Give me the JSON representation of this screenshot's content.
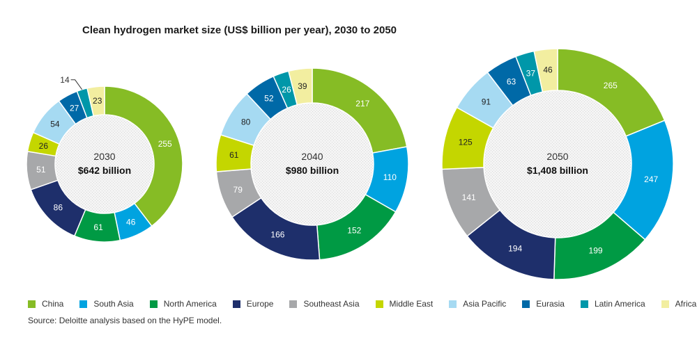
{
  "chart_data": {
    "type": "donut",
    "title": "Clean hydrogen market size (US$ billion per year), 2030 to 2050",
    "source": "Source: Deloitte analysis based on the HyPE model.",
    "categories": [
      "China",
      "South Asia",
      "North America",
      "Europe",
      "Southeast Asia",
      "Middle East",
      "Asia Pacific",
      "Eurasia",
      "Latin America",
      "Africa"
    ],
    "colors": [
      "#86bc25",
      "#00a3e0",
      "#009a44",
      "#1e2f6b",
      "#a7a8aa",
      "#c4d600",
      "#a6daf2",
      "#0069a7",
      "#0097a9",
      "#f2eea0"
    ],
    "legend_position": "bottom",
    "charts": [
      {
        "year": "2030",
        "total_label": "$642 billion",
        "values": [
          255,
          46,
          61,
          86,
          51,
          26,
          54,
          27,
          14,
          23
        ]
      },
      {
        "year": "2040",
        "total_label": "$980 billion",
        "values": [
          217,
          110,
          152,
          166,
          79,
          61,
          80,
          52,
          26,
          39
        ]
      },
      {
        "year": "2050",
        "total_label": "$1,408 billion",
        "values": [
          265,
          247,
          199,
          194,
          141,
          125,
          91,
          63,
          37,
          46
        ]
      }
    ]
  }
}
